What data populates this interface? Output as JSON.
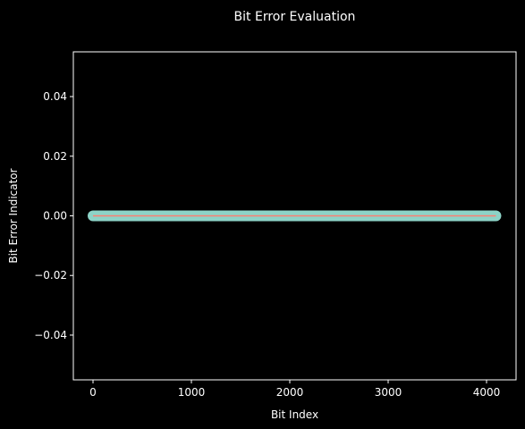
{
  "chart_data": {
    "type": "line",
    "title": "Bit Error Evaluation",
    "xlabel": "Bit Index",
    "ylabel": "Bit Error Indicator",
    "xlim": [
      -200,
      4300
    ],
    "ylim": [
      -0.055,
      0.055
    ],
    "xticks": [
      0,
      1000,
      2000,
      3000,
      4000
    ],
    "xtick_labels": [
      "0",
      "1000",
      "2000",
      "3000",
      "4000"
    ],
    "yticks": [
      -0.04,
      -0.02,
      0.0,
      0.02,
      0.04
    ],
    "ytick_labels": [
      "−0.04",
      "−0.02",
      "0.00",
      "0.02",
      "0.04"
    ],
    "grid": false,
    "series": [
      {
        "x_start": 0,
        "x_end": 4095,
        "y": 0.0,
        "style": "markers",
        "color": "#8dd3c7"
      },
      {
        "x_start": 0,
        "x_end": 4095,
        "y": 0.0,
        "style": "line",
        "color": "#fa8072"
      }
    ],
    "colors": {
      "background": "#000000",
      "axes": "#ffffff",
      "text": "#ffffff"
    }
  }
}
